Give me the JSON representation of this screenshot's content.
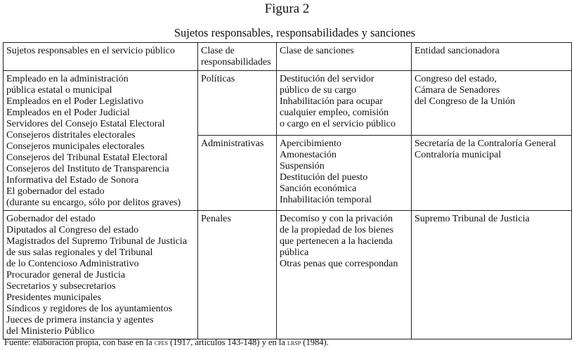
{
  "figure_label": "Figura 2",
  "title": "Sujetos responsables, responsabilidades y sanciones",
  "table": {
    "headers": [
      "Sujetos responsables en el servicio público",
      [
        "Clase de",
        "responsabilidades"
      ],
      "Clase de sanciones",
      "Entidad sancionadora"
    ],
    "group1_subjects": [
      "Empleado en la administración",
      "pública estatal o municipal",
      "Empleados en el Poder Legislativo",
      "Empleados en el Poder Judicial",
      "Servidores del Consejo Estatal Electoral",
      "Consejeros distritales electorales",
      "Consejeros municipales electorales",
      "Consejeros del Tribunal Estatal Electoral",
      "Consejeros del Instituto de Transparencia",
      "Informativa del Estado de Sonora",
      "El gobernador del estado",
      "(durante su encargo, sólo por delitos graves)"
    ],
    "politicas": {
      "type": "Políticas",
      "sanctions": [
        "Destitución del servidor",
        "público de su cargo",
        "Inhabilitación para ocupar",
        "cualquier empleo, comisión",
        "o cargo en el servicio público"
      ],
      "entity": [
        "Congreso del estado,",
        "Cámara de Senadores",
        "del Congreso de la Unión"
      ]
    },
    "administrativas": {
      "type": "Administrativas",
      "sanctions": [
        "Apercibimiento",
        "Amonestación",
        "Suspensión",
        "Destitución del puesto",
        "Sanción económica",
        "Inhabilitación temporal"
      ],
      "entity": [
        "Secretaría de la Contraloría General",
        "Contraloría municipal"
      ]
    },
    "group2_subjects": [
      "Gobernador del estado",
      "Diputados al Congreso del estado",
      "Magistrados del Supremo Tribunal de Justicia",
      "de sus salas regionales y del Tribunal",
      "de lo Contencioso Administrativo",
      "Procurador general de Justicia",
      "Secretarios y subsecretarios",
      "Presidentes municipales",
      "Síndicos y regidores de los ayuntamientos",
      "Jueces de primera instancia y agentes",
      "del Ministerio Público"
    ],
    "penales": {
      "type": "Penales",
      "sanctions": [
        "Decomiso y con la privación",
        "de la propiedad de los bienes",
        "que pertenecen a la hacienda",
        "pública",
        "Otras penas que correspondan"
      ],
      "entity": [
        "Supremo Tribunal de Justicia"
      ]
    }
  },
  "source": {
    "prefix": "Fuente: elaboración propia, con base en la",
    "abbr1": "CPES",
    "mid": "(1917, artículos 143-148) y en la",
    "abbr2": "LRSP",
    "suffix": "(1984)."
  }
}
